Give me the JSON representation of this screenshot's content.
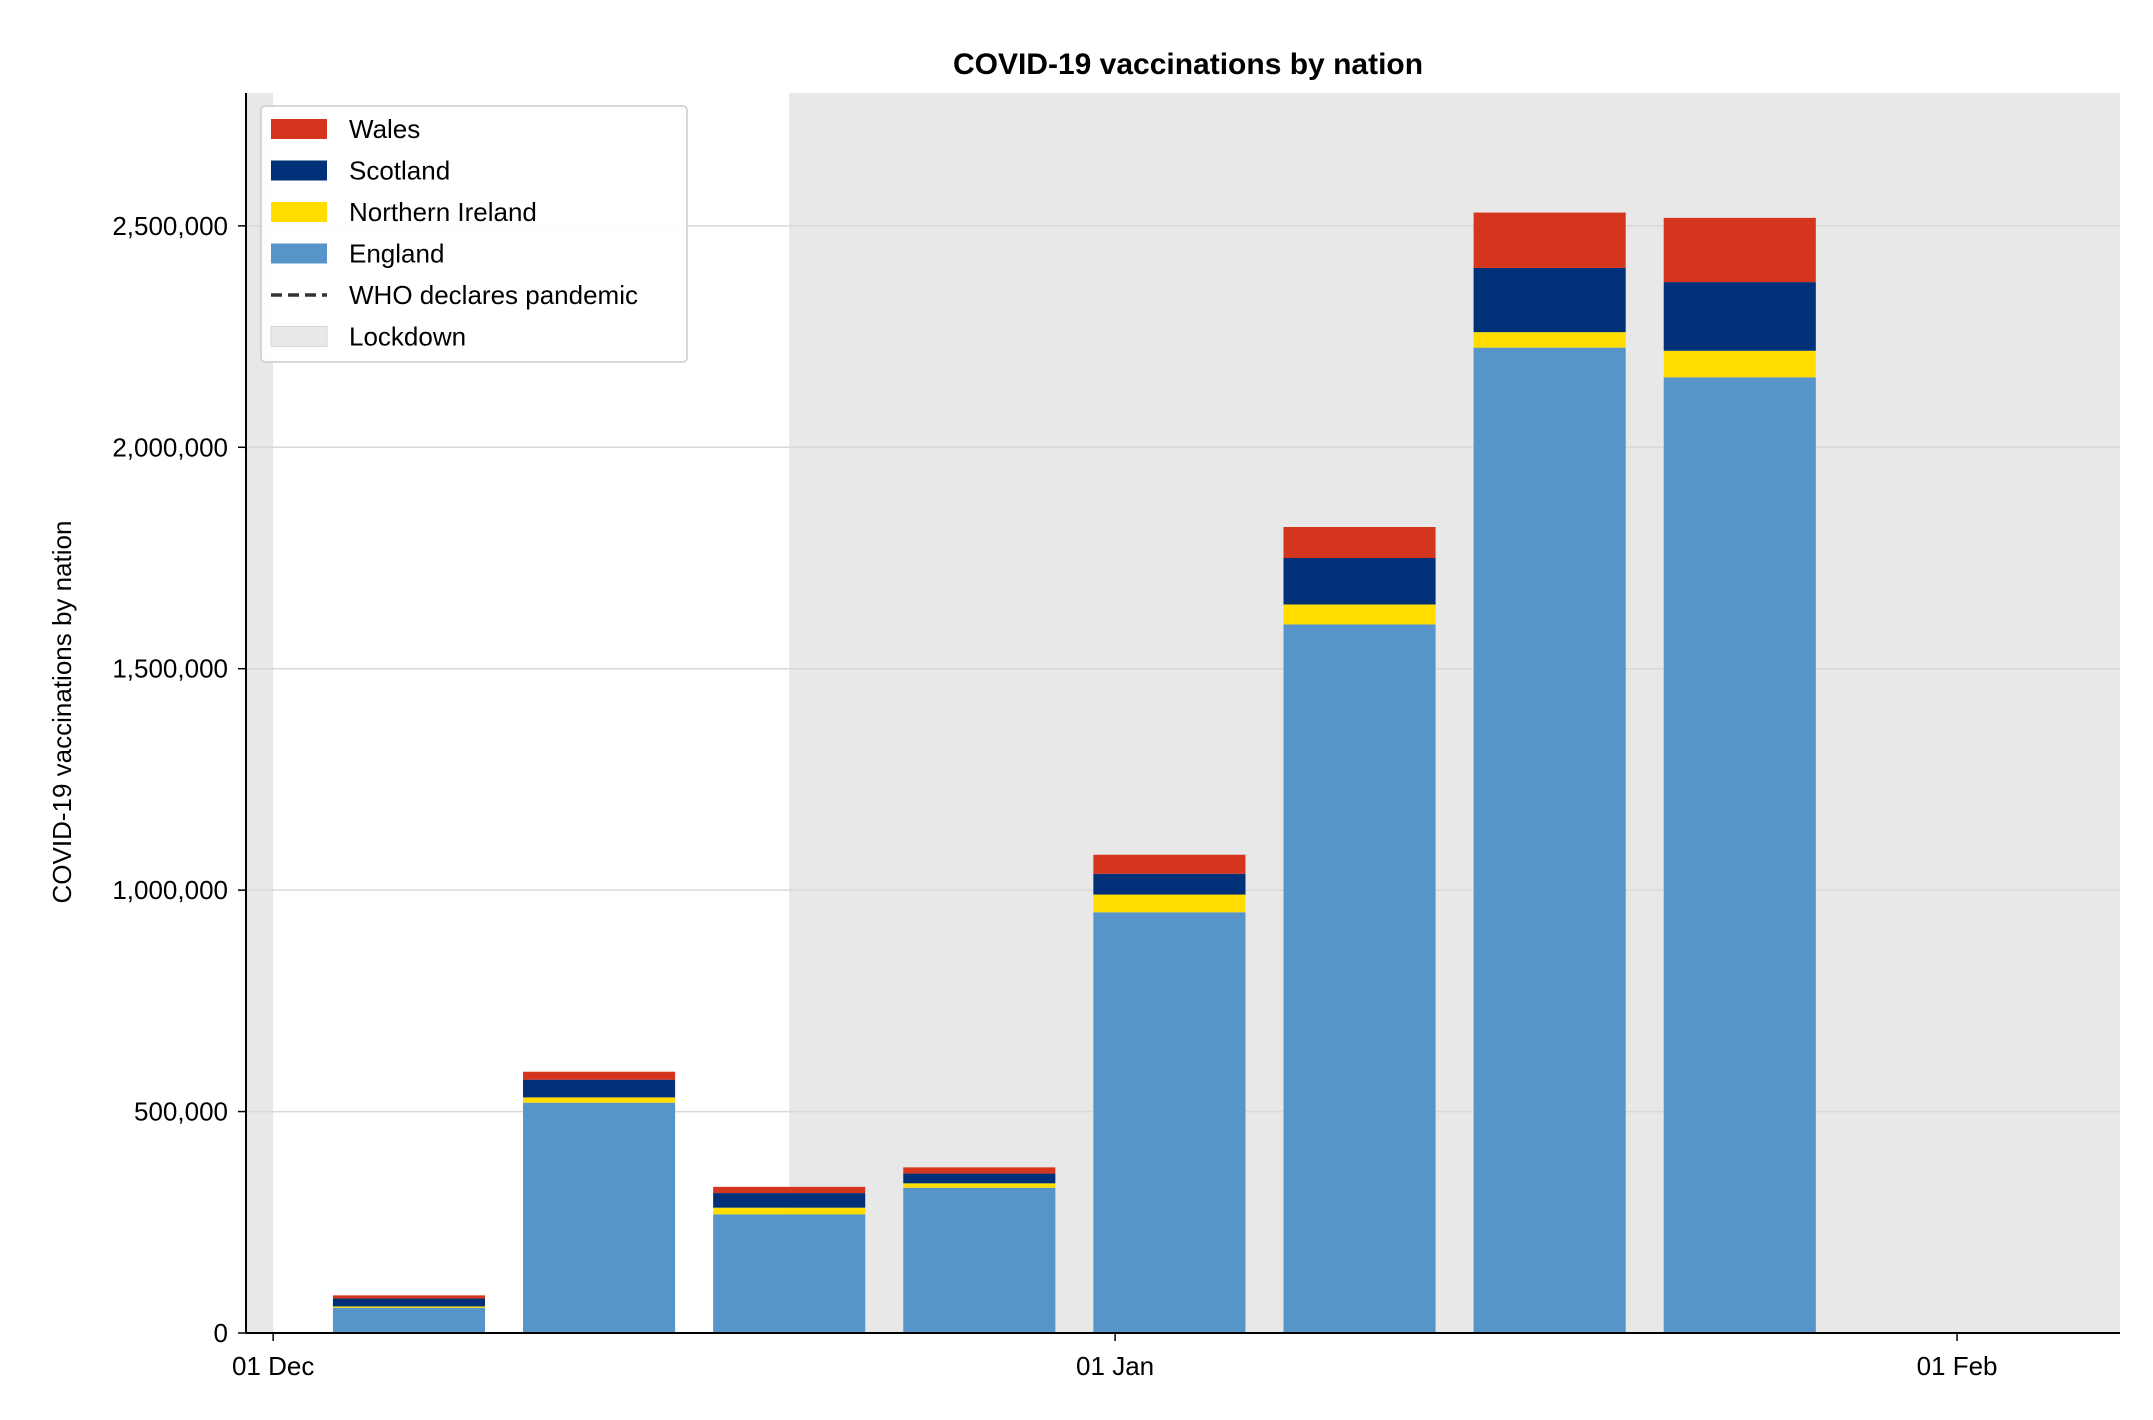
{
  "chart_data": {
    "type": "bar",
    "stacked": true,
    "title": "COVID-19 vaccinations by nation",
    "xlabel": "",
    "ylabel": "COVID-19 vaccinations by nation",
    "x_axis_type": "date",
    "x_ticks": [
      {
        "date": "2020-12-01",
        "label": "01 Dec"
      },
      {
        "date": "2021-01-01",
        "label": "01 Jan"
      },
      {
        "date": "2021-02-01",
        "label": "01 Feb"
      }
    ],
    "xlim": [
      "2020-11-30",
      "2021-02-07"
    ],
    "ylim": [
      0,
      2800000
    ],
    "y_ticks": [
      {
        "value": 0,
        "label": "0"
      },
      {
        "value": 500000,
        "label": "500,000"
      },
      {
        "value": 1000000,
        "label": "1,000,000"
      },
      {
        "value": 1500000,
        "label": "1,500,000"
      },
      {
        "value": 2000000,
        "label": "2,000,000"
      },
      {
        "value": 2500000,
        "label": "2,500,000"
      }
    ],
    "grid": "horizontal",
    "legend_position": "upper-left",
    "x": [
      "2020-12-06",
      "2020-12-13",
      "2020-12-20",
      "2020-12-27",
      "2021-01-03",
      "2021-01-10",
      "2021-01-17",
      "2021-01-24"
    ],
    "series": [
      {
        "name": "England",
        "color": "#5694ca",
        "values": [
          57000,
          520000,
          268000,
          328000,
          950000,
          1600000,
          2225000,
          2158000
        ]
      },
      {
        "name": "Northern Ireland",
        "color": "#ffdd00",
        "values": [
          3000,
          12000,
          15000,
          10000,
          40000,
          45000,
          35000,
          60000
        ]
      },
      {
        "name": "Scotland",
        "color": "#003078",
        "values": [
          18000,
          40000,
          33000,
          22000,
          47000,
          105000,
          145000,
          155000
        ]
      },
      {
        "name": "Wales",
        "color": "#d4351c",
        "values": [
          7000,
          18000,
          14000,
          14000,
          43000,
          70000,
          125000,
          145000
        ]
      }
    ],
    "annotations": [
      {
        "name": "WHO declares pandemic",
        "type": "vline",
        "style": "dashed",
        "color": "#333333"
      },
      {
        "name": "Lockdown",
        "type": "span",
        "color": "#e8e8e8",
        "spans": [
          [
            "2020-11-30",
            "2020-12-01"
          ],
          [
            "2020-12-20",
            "2021-02-07"
          ]
        ]
      }
    ],
    "legend": [
      {
        "label": "Wales",
        "kind": "patch",
        "color": "#d4351c"
      },
      {
        "label": "Scotland",
        "kind": "patch",
        "color": "#003078"
      },
      {
        "label": "Northern Ireland",
        "kind": "patch",
        "color": "#ffdd00"
      },
      {
        "label": "England",
        "kind": "patch",
        "color": "#5694ca"
      },
      {
        "label": "WHO declares pandemic",
        "kind": "dashed-line",
        "color": "#333333"
      },
      {
        "label": "Lockdown",
        "kind": "span-patch",
        "color": "#e8e8e8"
      }
    ]
  }
}
